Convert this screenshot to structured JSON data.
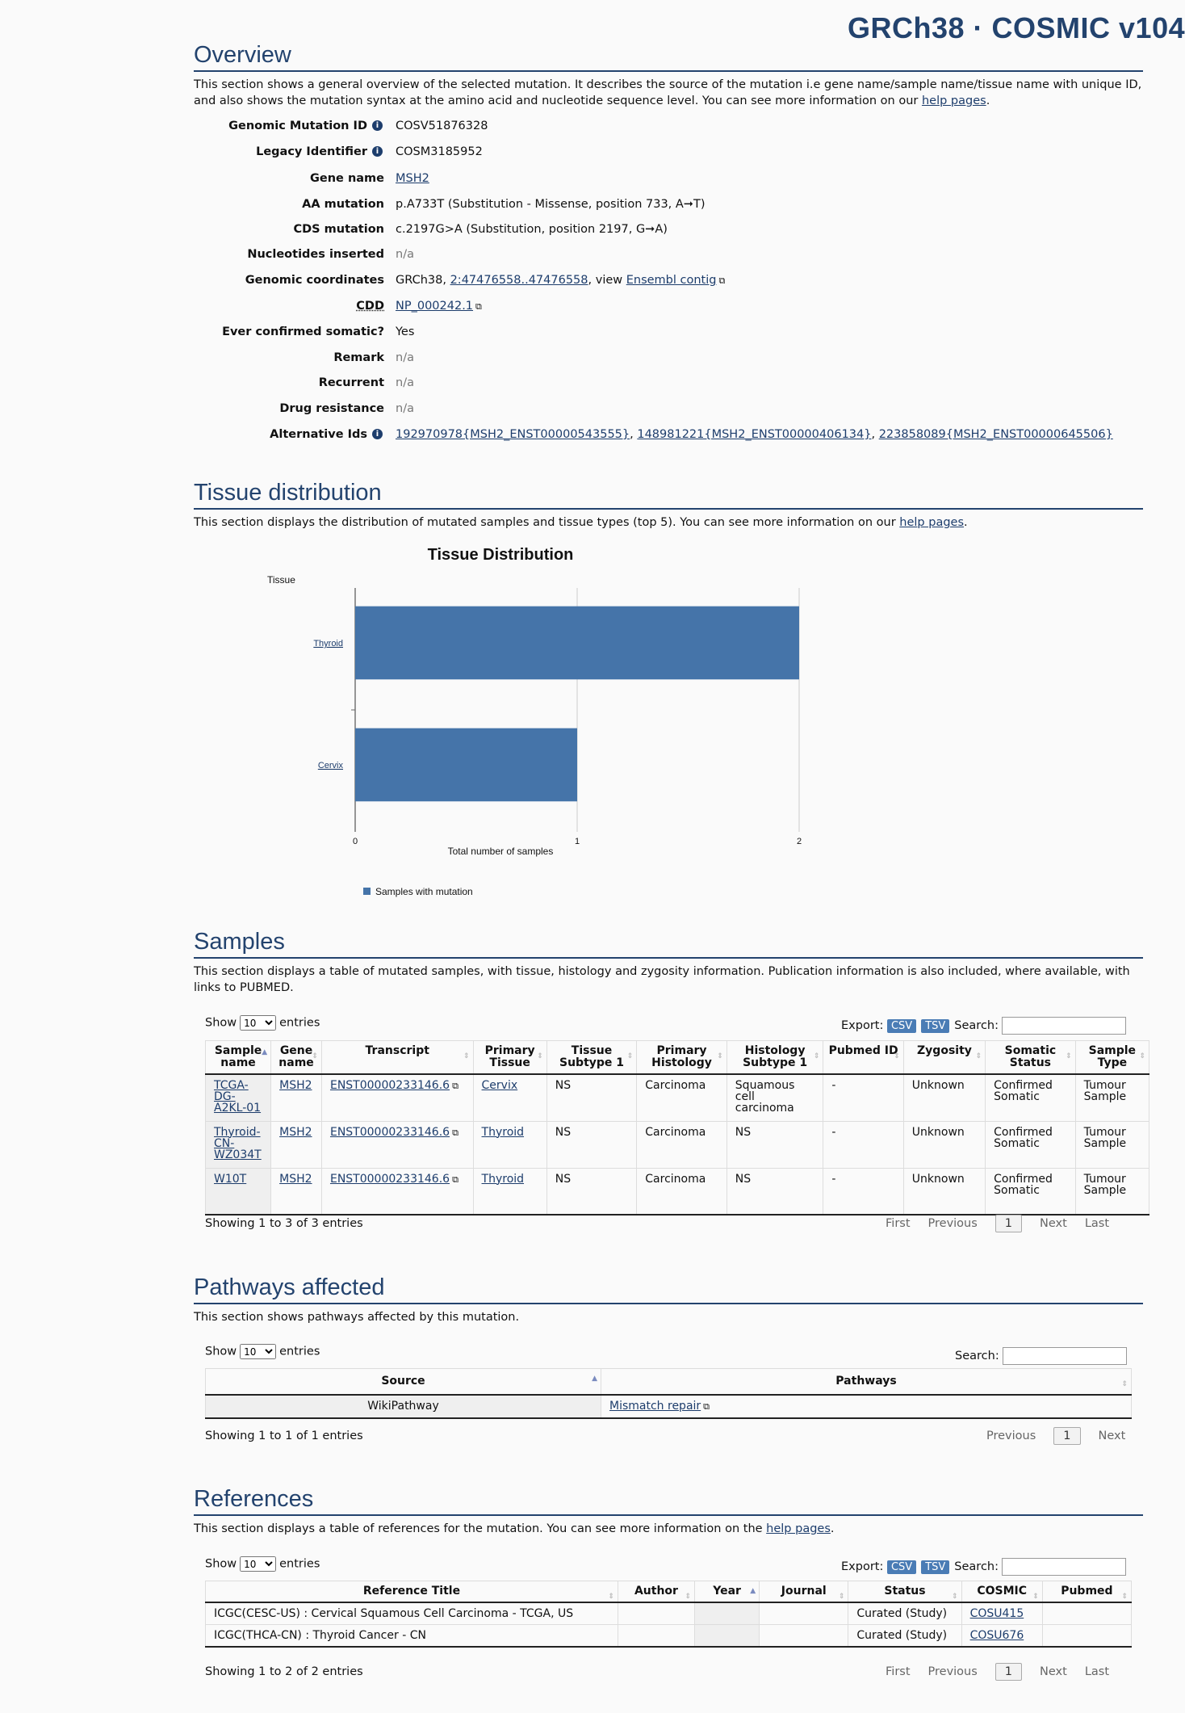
{
  "app_title": "GRCh38 · COSMIC v104",
  "overview": {
    "title": "Overview",
    "desc_pre": "This section shows a general overview of the selected mutation. It describes the source of the mutation i.e gene name/sample name/tissue name with unique ID, and also shows the mutation syntax at the amino acid and nucleotide sequence level. You can see more information on our ",
    "desc_link": "help pages",
    "desc_post": ".",
    "rows": {
      "genomic_id": {
        "label": "Genomic Mutation ID",
        "value": "COSV51876328"
      },
      "legacy_id": {
        "label": "Legacy Identifier",
        "value": "COSM3185952"
      },
      "gene_name": {
        "label": "Gene name",
        "value": "MSH2"
      },
      "aa_mutation": {
        "label": "AA mutation",
        "value": "p.A733T (Substitution - Missense, position 733, A➞T)"
      },
      "cds_mutation": {
        "label": "CDS mutation",
        "value": "c.2197G>A (Substitution, position 2197, G➞A)"
      },
      "nucleotides_inserted": {
        "label": "Nucleotides inserted",
        "value": "n/a"
      },
      "genomic_coords": {
        "label": "Genomic coordinates",
        "prefix": "GRCh38, ",
        "link": "2:47476558..47476558",
        "mid": ", view ",
        "link2": "Ensembl contig"
      },
      "cdd": {
        "label": "CDD",
        "link": "NP_000242.1"
      },
      "ever_confirmed": {
        "label": "Ever confirmed somatic?",
        "value": "Yes"
      },
      "remark": {
        "label": "Remark",
        "value": "n/a"
      },
      "recurrent": {
        "label": "Recurrent",
        "value": "n/a"
      },
      "drug_resistance": {
        "label": "Drug resistance",
        "value": "n/a"
      },
      "alt_ids": {
        "label": "Alternative Ids",
        "links": [
          "192970978{MSH2_ENST00000543555}",
          "148981221{MSH2_ENST00000406134}",
          "223858089{MSH2_ENST00000645506}"
        ]
      }
    }
  },
  "tissue": {
    "title": "Tissue distribution",
    "desc_pre": "This section displays the distribution of mutated samples and tissue types (top 5). You can see more information on our ",
    "desc_link": "help pages",
    "desc_post": "."
  },
  "chart_data": {
    "type": "bar",
    "orientation": "horizontal",
    "title": "Tissue Distribution",
    "ylabel": "Tissue",
    "xlabel": "Total number of samples",
    "categories": [
      "Thyroid",
      "Cervix"
    ],
    "series": [
      {
        "name": "Samples with mutation",
        "values": [
          2,
          1
        ],
        "color": "#4574a9"
      }
    ],
    "xlim": [
      0,
      2
    ],
    "xticks": [
      "0",
      "1",
      "2"
    ],
    "grid": true,
    "legend": "bottom"
  },
  "samples": {
    "title": "Samples",
    "desc": "This section displays a table of mutated samples, with tissue, histology and zygosity information. Publication information is also included, where available, with links to PUBMED.",
    "show": "Show",
    "entries": "entries",
    "entries_value": "10",
    "export": "Export:",
    "csv": "CSV",
    "tsv": "TSV",
    "search": "Search:",
    "headers": [
      "Sample name",
      "Gene name",
      "Transcript",
      "Primary Tissue",
      "Tissue Subtype 1",
      "Primary Histology",
      "Histology Subtype 1",
      "Pubmed ID",
      "Zygosity",
      "Somatic Status",
      "Sample Type"
    ],
    "rows": [
      [
        "TCGA-DG-A2KL-01",
        "MSH2",
        "ENST00000233146.6",
        "Cervix",
        "NS",
        "Carcinoma",
        "Squamous cell carcinoma",
        "-",
        "Unknown",
        "Confirmed Somatic",
        "Tumour Sample"
      ],
      [
        "Thyroid-CN-WZ034T",
        "MSH2",
        "ENST00000233146.6",
        "Thyroid",
        "NS",
        "Carcinoma",
        "NS",
        "-",
        "Unknown",
        "Confirmed Somatic",
        "Tumour Sample"
      ],
      [
        "W10T",
        "MSH2",
        "ENST00000233146.6",
        "Thyroid",
        "NS",
        "Carcinoma",
        "NS",
        "-",
        "Unknown",
        "Confirmed Somatic",
        "Tumour Sample"
      ]
    ],
    "info": "Showing 1 to 3 of 3 entries",
    "first": "First",
    "previous": "Previous",
    "page": "1",
    "next": "Next",
    "last": "Last"
  },
  "pathways": {
    "title": "Pathways affected",
    "desc": "This section shows pathways affected by this mutation.",
    "show": "Show",
    "entries": "entries",
    "entries_value": "10",
    "search": "Search:",
    "headers": [
      "Source",
      "Pathways"
    ],
    "rows": [
      [
        "WikiPathway",
        "Mismatch repair"
      ]
    ],
    "info": "Showing 1 to 1 of 1 entries",
    "previous": "Previous",
    "page": "1",
    "next": "Next"
  },
  "references": {
    "title": "References",
    "desc_pre": "This section displays a table of references for the mutation. You can see more information on the ",
    "desc_link": "help pages",
    "desc_post": ".",
    "show": "Show",
    "entries": "entries",
    "entries_value": "10",
    "export": "Export:",
    "csv": "CSV",
    "tsv": "TSV",
    "search": "Search:",
    "headers": [
      "Reference Title",
      "Author",
      "Year",
      "Journal",
      "Status",
      "COSMIC",
      "Pubmed"
    ],
    "rows": [
      [
        "ICGC(CESC-US) : Cervical Squamous Cell Carcinoma - TCGA, US",
        "",
        "",
        "",
        "Curated (Study)",
        "COSU415",
        ""
      ],
      [
        "ICGC(THCA-CN) : Thyroid Cancer - CN",
        "",
        "",
        "",
        "Curated (Study)",
        "COSU676",
        ""
      ]
    ],
    "info": "Showing 1 to 2 of 2 entries",
    "first": "First",
    "previous": "Previous",
    "page": "1",
    "next": "Next",
    "last": "Last"
  }
}
